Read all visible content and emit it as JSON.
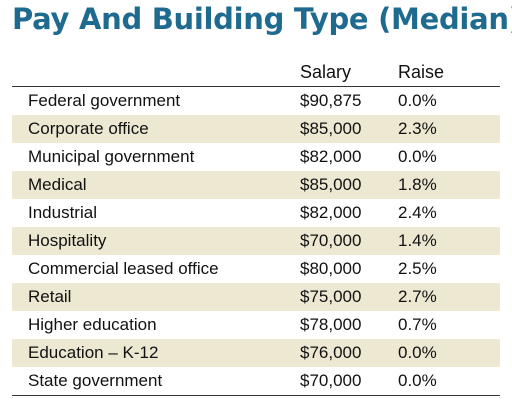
{
  "chart_data": {
    "type": "table",
    "title": "Pay And Building Type (Median)",
    "columns": [
      "",
      "Salary",
      "Raise"
    ],
    "rows": [
      {
        "type": "Federal government",
        "salary": "$90,875",
        "raise": "0.0%"
      },
      {
        "type": "Corporate office",
        "salary": "$85,000",
        "raise": "2.3%"
      },
      {
        "type": "Municipal government",
        "salary": "$82,000",
        "raise": "0.0%"
      },
      {
        "type": "Medical",
        "salary": "$85,000",
        "raise": "1.8%"
      },
      {
        "type": "Industrial",
        "salary": "$82,000",
        "raise": "2.4%"
      },
      {
        "type": "Hospitality",
        "salary": "$70,000",
        "raise": "1.4%"
      },
      {
        "type": "Commercial leased office",
        "salary": "$80,000",
        "raise": "2.5%"
      },
      {
        "type": "Retail",
        "salary": "$75,000",
        "raise": "2.7%"
      },
      {
        "type": "Higher education",
        "salary": "$78,000",
        "raise": "0.7%"
      },
      {
        "type": "Education – K-12",
        "salary": "$76,000",
        "raise": "0.0%"
      },
      {
        "type": "State government",
        "salary": "$70,000",
        "raise": "0.0%"
      }
    ],
    "colors": {
      "title": "#1f6b8f",
      "row_shade": "#ede8d2"
    },
    "row_shading": "alternate"
  }
}
